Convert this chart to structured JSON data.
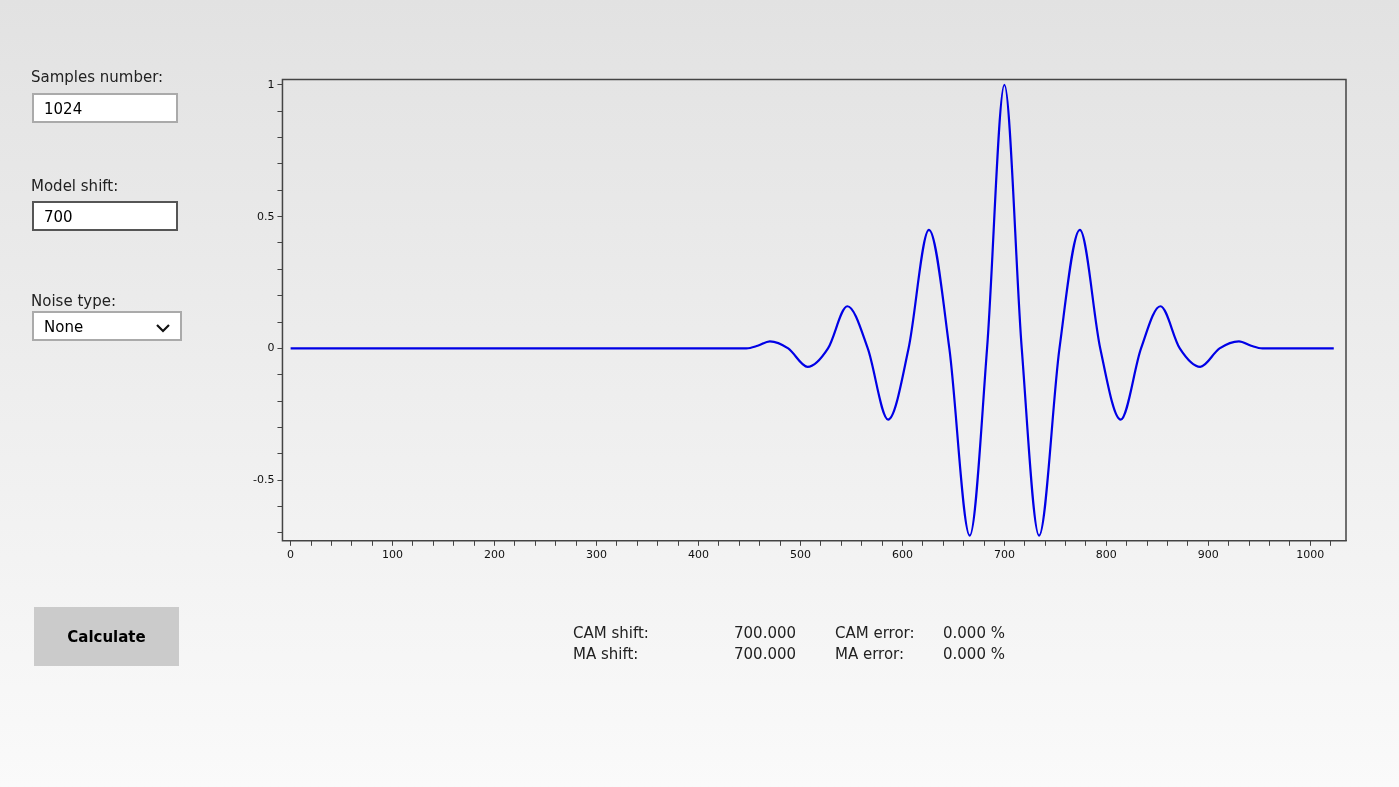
{
  "chart_data": {
    "type": "line",
    "x": [
      0,
      100,
      200,
      300,
      400,
      447,
      458,
      470,
      488,
      507,
      527,
      546,
      566,
      586,
      606,
      626,
      646,
      666,
      683,
      700,
      717,
      734,
      754,
      774,
      794,
      814,
      834,
      853,
      872,
      892,
      911,
      930,
      942,
      953,
      1000,
      1023
    ],
    "series": [
      {
        "color": "#0000e6",
        "values": [
          0,
          0,
          0,
          0,
          0,
          0,
          0.01,
          0.027,
          0,
          -0.07,
          0,
          0.16,
          0,
          -0.27,
          0,
          0.45,
          0,
          -0.71,
          0,
          1.0,
          0,
          -0.71,
          0,
          0.45,
          0,
          -0.27,
          0,
          0.16,
          0,
          -0.07,
          0,
          0.027,
          0.01,
          0,
          0,
          0
        ]
      }
    ],
    "xlim": [
      -8,
      1035
    ],
    "ylim": [
      -0.73,
      1.02
    ],
    "xticks": [
      0,
      {
        "value": 20,
        "label": null
      },
      {
        "value": 40,
        "label": null
      },
      {
        "value": 60,
        "label": null
      },
      {
        "value": 80,
        "label": null
      },
      100,
      {
        "value": 120,
        "label": null
      },
      {
        "value": 140,
        "label": null
      },
      {
        "value": 160,
        "label": null
      },
      {
        "value": 180,
        "label": null
      },
      200,
      {
        "value": 220,
        "label": null
      },
      {
        "value": 240,
        "label": null
      },
      {
        "value": 260,
        "label": null
      },
      {
        "value": 280,
        "label": null
      },
      300,
      {
        "value": 320,
        "label": null
      },
      {
        "value": 340,
        "label": null
      },
      {
        "value": 360,
        "label": null
      },
      {
        "value": 380,
        "label": null
      },
      400,
      {
        "value": 420,
        "label": null
      },
      {
        "value": 440,
        "label": null
      },
      {
        "value": 460,
        "label": null
      },
      {
        "value": 480,
        "label": null
      },
      500,
      {
        "value": 520,
        "label": null
      },
      {
        "value": 540,
        "label": null
      },
      {
        "value": 560,
        "label": null
      },
      {
        "value": 580,
        "label": null
      },
      600,
      {
        "value": 620,
        "label": null
      },
      {
        "value": 640,
        "label": null
      },
      {
        "value": 660,
        "label": null
      },
      {
        "value": 680,
        "label": null
      },
      700,
      {
        "value": 720,
        "label": null
      },
      {
        "value": 740,
        "label": null
      },
      {
        "value": 760,
        "label": null
      },
      {
        "value": 780,
        "label": null
      },
      800,
      {
        "value": 820,
        "label": null
      },
      {
        "value": 840,
        "label": null
      },
      {
        "value": 860,
        "label": null
      },
      {
        "value": 880,
        "label": null
      },
      900,
      {
        "value": 920,
        "label": null
      },
      {
        "value": 940,
        "label": null
      },
      {
        "value": 960,
        "label": null
      },
      {
        "value": 980,
        "label": null
      },
      1000,
      {
        "value": 1020,
        "label": null
      }
    ],
    "yticks": [
      {
        "value": -0.7,
        "label": null
      },
      {
        "value": -0.6,
        "label": null
      },
      -0.5,
      {
        "value": -0.4,
        "label": null
      },
      {
        "value": -0.3,
        "label": null
      },
      {
        "value": -0.2,
        "label": null
      },
      {
        "value": -0.1,
        "label": null
      },
      0,
      {
        "value": 0.1,
        "label": null
      },
      {
        "value": 0.2,
        "label": null
      },
      {
        "value": 0.3,
        "label": null
      },
      {
        "value": 0.4,
        "label": null
      },
      0.5,
      {
        "value": 0.6,
        "label": null
      },
      {
        "value": 0.7,
        "label": null
      },
      {
        "value": 0.8,
        "label": null
      },
      {
        "value": 0.9,
        "label": null
      },
      1
    ],
    "grid": false,
    "legend": false,
    "marker": "none",
    "line_style": "solid",
    "annotations": [
      "Samples number:",
      "1024",
      "Model shift:",
      "700",
      "Noise type:",
      "None",
      "Calculate",
      "CAM shift:",
      "700.000",
      "CAM error:",
      "0.000 %",
      "MA shift:",
      "700.000",
      "MA error:",
      "0.000 %"
    ]
  }
}
